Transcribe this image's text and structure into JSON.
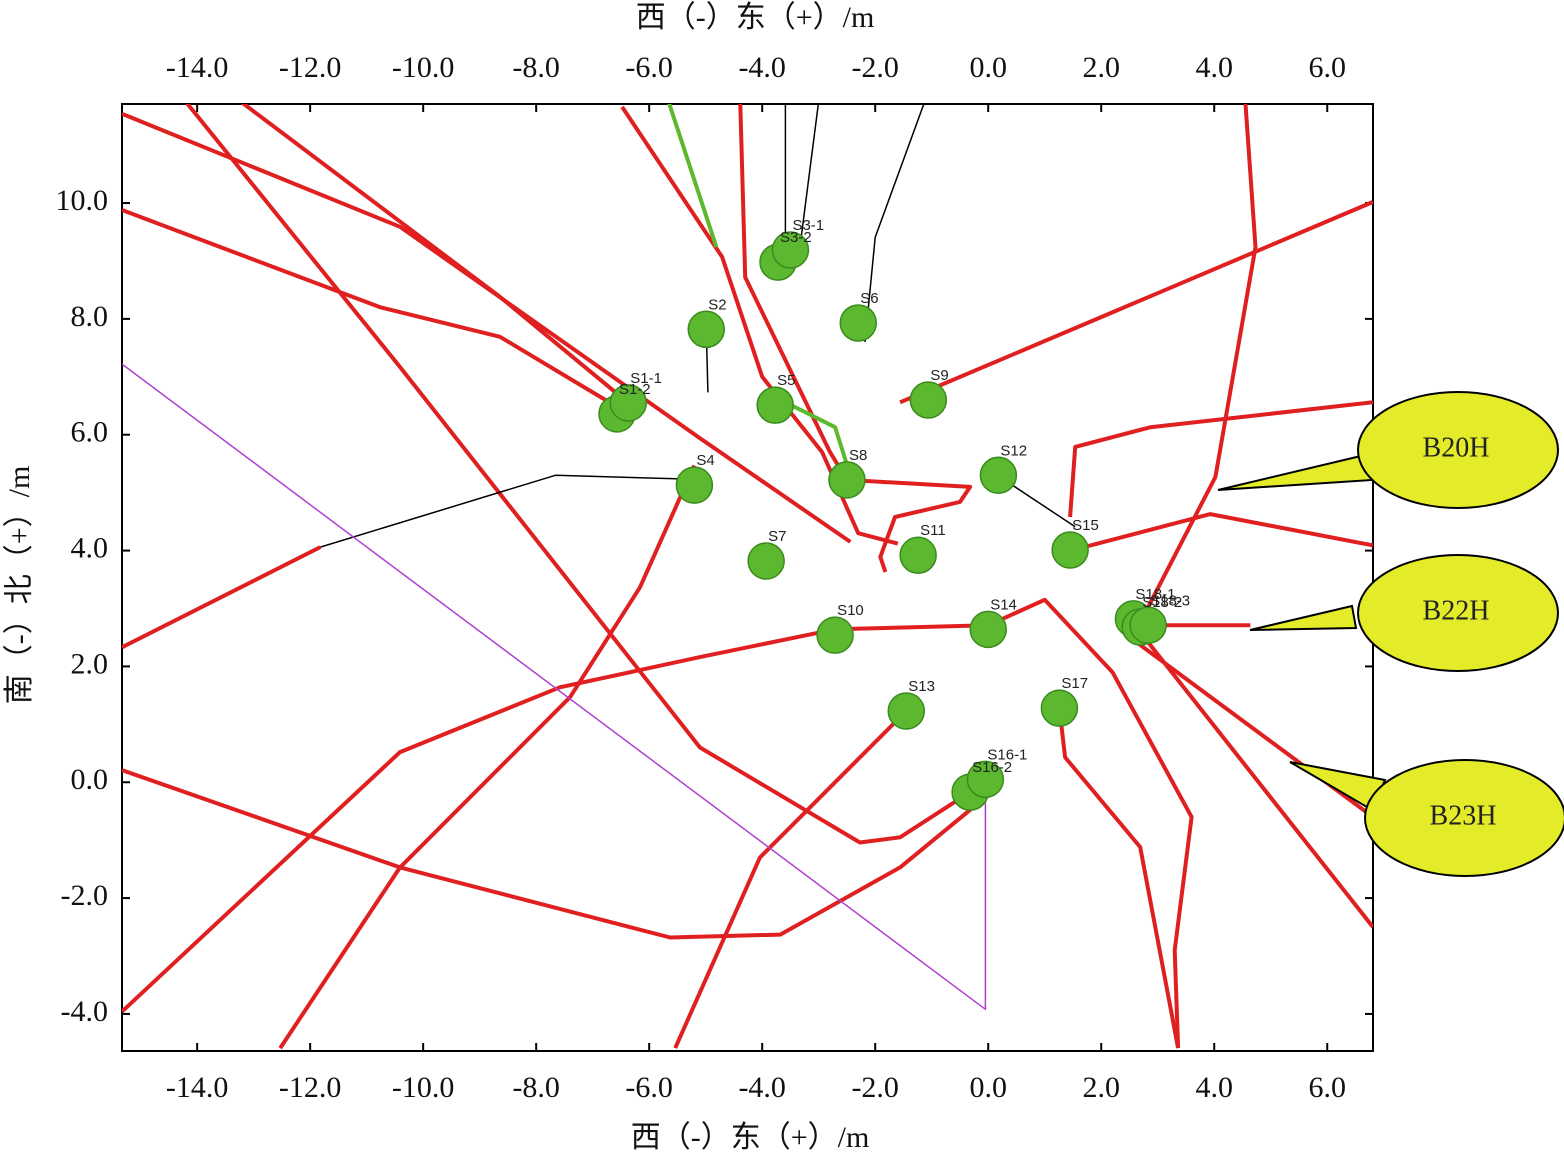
{
  "chart_data": {
    "type": "scatter",
    "x_label_top": "西（-）东（+）/m",
    "x_label_bottom": "西（-）东（+）/m",
    "y_label": "南（-）北（+）/m",
    "xlim": [
      -15.33,
      6.81
    ],
    "ylim": [
      -4.64,
      11.71
    ],
    "xticks": [
      {
        "value": -14,
        "label": "-14.0"
      },
      {
        "value": -12,
        "label": "-12.0"
      },
      {
        "value": -10,
        "label": "-10.0"
      },
      {
        "value": -8,
        "label": "-8.0"
      },
      {
        "value": -6,
        "label": "-6.0"
      },
      {
        "value": -4,
        "label": "-4.0"
      },
      {
        "value": -2,
        "label": "-2.0"
      },
      {
        "value": 0,
        "label": "0.0"
      },
      {
        "value": 2,
        "label": "2.0"
      },
      {
        "value": 4,
        "label": "4.0"
      },
      {
        "value": 6,
        "label": "6.0"
      }
    ],
    "yticks": [
      {
        "value": 10,
        "label": "10.0"
      },
      {
        "value": 8,
        "label": "8.0"
      },
      {
        "value": 6,
        "label": "6.0"
      },
      {
        "value": 4,
        "label": "4.0"
      },
      {
        "value": 2,
        "label": "2.0"
      },
      {
        "value": 0,
        "label": "0.0"
      },
      {
        "value": -2,
        "label": "-2.0"
      },
      {
        "value": -4,
        "label": "-4.0"
      }
    ],
    "wells": {
      "color": "#5cb82e",
      "labels": [
        "S1-2",
        "S1-1",
        "S2",
        "S3-2",
        "S3-1",
        "S4",
        "S5",
        "S6",
        "S7",
        "S8",
        "S9",
        "S10",
        "S11",
        "S12",
        "S13",
        "S14",
        "S15",
        "S16-2",
        "S16-1",
        "S17",
        "S18-1",
        "S18-2",
        "S18-3"
      ],
      "x": [
        -6.57,
        -6.37,
        -4.99,
        -3.72,
        -3.5,
        -5.2,
        -3.77,
        -2.3,
        -3.93,
        -2.5,
        -1.06,
        -2.71,
        -1.24,
        0.18,
        -1.45,
        0.0,
        1.45,
        -0.32,
        -0.05,
        1.26,
        2.57,
        2.69,
        2.83
      ],
      "y": [
        6.36,
        6.55,
        7.82,
        8.98,
        9.19,
        5.13,
        6.51,
        7.93,
        3.82,
        5.22,
        6.6,
        2.54,
        3.92,
        5.3,
        1.23,
        2.64,
        4.01,
        -0.17,
        0.05,
        1.28,
        2.82,
        2.68,
        2.71
      ]
    },
    "trajectories": [
      {
        "color": "#e02020",
        "x": [
          -15.33,
          -10.41,
          -5.1,
          -2.44
        ],
        "y": [
          11.54,
          9.59,
          5.94,
          4.15
        ]
      },
      {
        "color": "#e02020",
        "x": [
          -15.33,
          -10.76,
          -8.64,
          -6.57
        ],
        "y": [
          9.88,
          8.2,
          7.69,
          6.48
        ]
      },
      {
        "color": "#e02020",
        "x": [
          -14.21,
          -10.41,
          -5.1,
          -2.27,
          -1.56,
          -0.32
        ],
        "y": [
          11.76,
          7.17,
          0.6,
          -1.04,
          -0.95,
          -0.17
        ]
      },
      {
        "color": "#e02020",
        "x": [
          -13.24,
          -8.64,
          -6.37
        ],
        "y": [
          11.76,
          8.38,
          6.55
        ]
      },
      {
        "color": "#e02020",
        "x": [
          -15.33,
          -11.82
        ],
        "y": [
          2.33,
          4.06
        ]
      },
      {
        "color": "#000000",
        "x": [
          -11.82,
          -7.66,
          -5.2
        ],
        "y": [
          4.06,
          5.3,
          5.23
        ]
      },
      {
        "color": "#e02020",
        "x": [
          -5.2,
          -6.16,
          -7.4,
          -10.41,
          -12.53
        ],
        "y": [
          5.47,
          3.37,
          1.47,
          -1.47,
          -4.59
        ]
      },
      {
        "color": "#e02020",
        "x": [
          -15.33,
          -10.41,
          -7.58,
          -5.1,
          -2.71,
          0.0,
          1.0,
          2.2,
          3.6,
          3.3,
          3.36
        ],
        "y": [
          -3.96,
          0.52,
          1.64,
          2.16,
          2.64,
          2.71,
          3.15,
          1.9,
          -0.6,
          -2.9,
          -4.59
        ]
      },
      {
        "color": "#e02020",
        "x": [
          -15.33,
          -10.41,
          -5.63,
          -3.68,
          -1.56,
          -0.05
        ],
        "y": [
          0.21,
          -1.47,
          -2.68,
          -2.63,
          -1.47,
          -0.26
        ]
      },
      {
        "color": "#e02020",
        "x": [
          -5.54,
          -4.04,
          -1.45
        ],
        "y": [
          -4.59,
          -1.3,
          1.23
        ]
      },
      {
        "color": "#e02020",
        "x": [
          1.26,
          1.36,
          2.69,
          3.36
        ],
        "y": [
          1.28,
          0.43,
          -1.12,
          -4.59
        ]
      },
      {
        "color": "#e02020",
        "x": [
          2.69,
          6.81
        ],
        "y": [
          2.59,
          -2.5
        ]
      },
      {
        "color": "#e02020",
        "x": [
          2.51,
          6.81
        ],
        "y": [
          2.5,
          -0.6
        ]
      },
      {
        "color": "#e02020",
        "x": [
          4.55,
          4.73,
          4.02,
          2.69
        ],
        "y": [
          11.76,
          9.24,
          5.27,
          2.76
        ]
      },
      {
        "color": "#e02020",
        "x": [
          -1.56,
          6.81
        ],
        "y": [
          6.56,
          10.02
        ]
      },
      {
        "color": "#e02020",
        "x": [
          1.45,
          1.81,
          3.93,
          6.81
        ],
        "y": [
          4.01,
          4.09,
          4.63,
          4.09
        ]
      },
      {
        "color": "#e02020",
        "x": [
          1.45,
          1.54,
          2.87,
          6.81
        ],
        "y": [
          4.58,
          5.79,
          6.13,
          6.56
        ]
      },
      {
        "color": "#e02020",
        "x": [
          2.69,
          4.64
        ],
        "y": [
          2.71,
          2.71
        ]
      },
      {
        "color": "#e02020",
        "x": [
          -4.39,
          -4.3,
          -2.8,
          -2.5
        ],
        "y": [
          11.76,
          8.72,
          5.7,
          5.22
        ]
      },
      {
        "color": "#e02020",
        "x": [
          -6.48,
          -4.71,
          -4.0,
          -2.94,
          -2.3,
          -1.6
        ],
        "y": [
          11.66,
          9.07,
          7.0,
          5.7,
          4.3,
          4.12
        ]
      },
      {
        "color": "#e02020",
        "x": [
          -2.5,
          -0.32,
          -0.5,
          -1.65,
          -1.91,
          -1.82
        ],
        "y": [
          5.22,
          5.1,
          4.84,
          4.58,
          3.89,
          3.63
        ]
      },
      {
        "color": "#000000",
        "x": [
          -4.99,
          -4.96
        ],
        "y": [
          7.82,
          6.73
        ]
      },
      {
        "color": "#000000",
        "x": [
          -3.59,
          -3.59
        ],
        "y": [
          11.76,
          8.98
        ]
      },
      {
        "color": "#000000",
        "x": [
          -3.0,
          -3.31
        ],
        "y": [
          11.76,
          9.41
        ]
      },
      {
        "color": "#000000",
        "x": [
          -1.12,
          -2.0,
          -2.18
        ],
        "y": [
          11.76,
          9.41,
          7.6
        ]
      },
      {
        "color": "#000000",
        "x": [
          0.21,
          1.54
        ],
        "y": [
          5.27,
          4.41
        ]
      },
      {
        "color": "#5cb82e",
        "x": [
          -5.66,
          -4.81
        ],
        "y": [
          11.76,
          9.24
        ]
      },
      {
        "color": "#5cb82e",
        "x": [
          -3.77,
          -2.71,
          -2.44
        ],
        "y": [
          6.65,
          6.13,
          5.3
        ]
      },
      {
        "color": "#b040d0",
        "x": [
          -15.33,
          -0.05,
          -0.05
        ],
        "y": [
          7.22,
          -3.92,
          -0.26
        ]
      }
    ],
    "callouts": [
      "B20H",
      "B22H",
      "B23H"
    ]
  }
}
